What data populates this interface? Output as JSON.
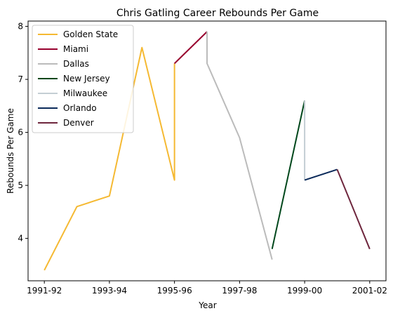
{
  "chart_data": {
    "type": "line",
    "title": "Chris Gatling Career Rebounds Per Game",
    "xlabel": "Year",
    "ylabel": "Rebounds Per Game",
    "x_ticks": [
      "1991-92",
      "1993-94",
      "1995-96",
      "1997-98",
      "1999-00",
      "2001-02"
    ],
    "y_ticks": [
      4,
      5,
      6,
      7,
      8
    ],
    "ylim": [
      3.2,
      8.1
    ],
    "grid": false,
    "legend_position": "top-left",
    "seasons": [
      "1991-92",
      "1992-93",
      "1993-94",
      "1994-95",
      "1995-96",
      "1996-97",
      "1997-98",
      "1998-99",
      "1999-00",
      "2000-01",
      "2001-02"
    ],
    "series": [
      {
        "name": "Golden State",
        "color": "#F5B932",
        "points": [
          [
            "1991-92",
            3.4
          ],
          [
            "1992-93",
            4.6
          ],
          [
            "1993-94",
            4.8
          ],
          [
            "1994-95",
            7.6
          ],
          [
            "1995-96",
            5.1
          ],
          [
            "1995-96",
            7.3
          ]
        ]
      },
      {
        "name": "Miami",
        "color": "#98002E",
        "points": [
          [
            "1995-96",
            7.3
          ],
          [
            "1996-97",
            7.9
          ]
        ]
      },
      {
        "name": "Dallas",
        "color": "#BBBBBB",
        "points": [
          [
            "1996-97",
            7.9
          ],
          [
            "1996-97",
            7.3
          ],
          [
            "1997-98",
            5.9
          ],
          [
            "1998-99",
            3.6
          ]
        ]
      },
      {
        "name": "New Jersey",
        "color": "#00471B",
        "points": [
          [
            "1998-99",
            3.8
          ],
          [
            "1999-00",
            6.6
          ]
        ]
      },
      {
        "name": "Milwaukee",
        "color": "#C4CED4",
        "points": [
          [
            "1999-00",
            6.6
          ],
          [
            "1999-00",
            5.1
          ]
        ]
      },
      {
        "name": "Orlando",
        "color": "#0B2A5A",
        "points": [
          [
            "1999-00",
            5.1
          ],
          [
            "2000-01",
            5.3
          ]
        ]
      },
      {
        "name": "Denver",
        "color": "#6E263D",
        "points": [
          [
            "2000-01",
            5.3
          ],
          [
            "2001-02",
            3.8
          ]
        ]
      }
    ]
  }
}
